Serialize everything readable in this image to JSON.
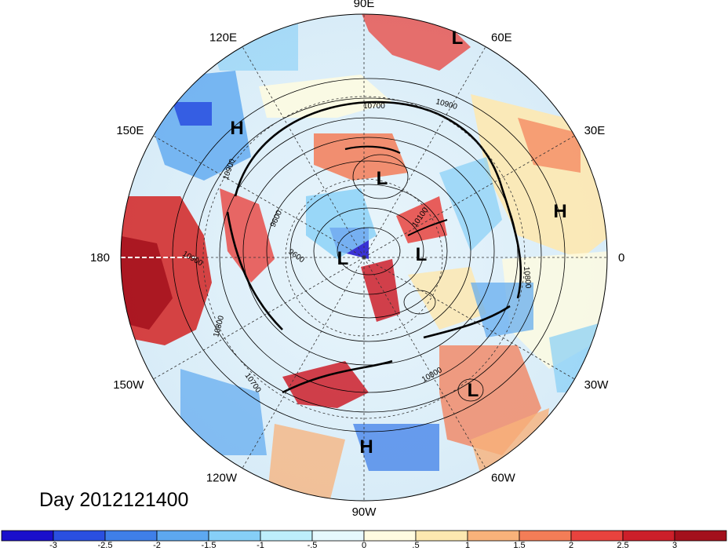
{
  "map": {
    "day_label": "Day 2012121400",
    "longitude_labels": [
      {
        "lon_deg": 90,
        "text": "90E"
      },
      {
        "lon_deg": 60,
        "text": "60E"
      },
      {
        "lon_deg": 30,
        "text": "30E"
      },
      {
        "lon_deg": 0,
        "text": "0"
      },
      {
        "lon_deg": -30,
        "text": "30W"
      },
      {
        "lon_deg": -60,
        "text": "60W"
      },
      {
        "lon_deg": -90,
        "text": "90W"
      },
      {
        "lon_deg": -120,
        "text": "120W"
      },
      {
        "lon_deg": -150,
        "text": "150W"
      },
      {
        "lon_deg": 180,
        "text": "180"
      },
      {
        "lon_deg": 150,
        "text": "150E"
      },
      {
        "lon_deg": 120,
        "text": "120E"
      }
    ],
    "pressure_centers": [
      {
        "type": "H",
        "text": "H",
        "near": "150E"
      },
      {
        "type": "L",
        "text": "L",
        "near": "60E"
      },
      {
        "type": "L",
        "text": "L",
        "near": "pole north"
      },
      {
        "type": "H",
        "text": "H",
        "near": "10E"
      },
      {
        "type": "L",
        "text": "L",
        "near": "pole"
      },
      {
        "type": "L",
        "text": "L",
        "near": "pole east"
      },
      {
        "type": "L",
        "text": "L",
        "near": "40W"
      },
      {
        "type": "H",
        "text": "H",
        "near": "90W"
      }
    ],
    "contour_labels": [
      "10700",
      "10900",
      "10900",
      "9600",
      "9600",
      "10100",
      "10800",
      "10900",
      "10800",
      "10700",
      "10800"
    ],
    "colorbar": {
      "colors": [
        "#1a0fcc",
        "#2a4fe0",
        "#3f7fe8",
        "#5da8f0",
        "#86cff7",
        "#bdeefc",
        "#e6f8fd",
        "#fffbe0",
        "#fde8b0",
        "#f8b27a",
        "#f37d57",
        "#e8433e",
        "#cc1f2a",
        "#a3101c"
      ],
      "tick_labels": [
        "-3",
        "-2.5",
        "-2",
        "-1.5",
        "-1",
        "-.5",
        "0",
        ".5",
        "1",
        "1.5",
        "2",
        "2.5",
        "3"
      ]
    }
  }
}
